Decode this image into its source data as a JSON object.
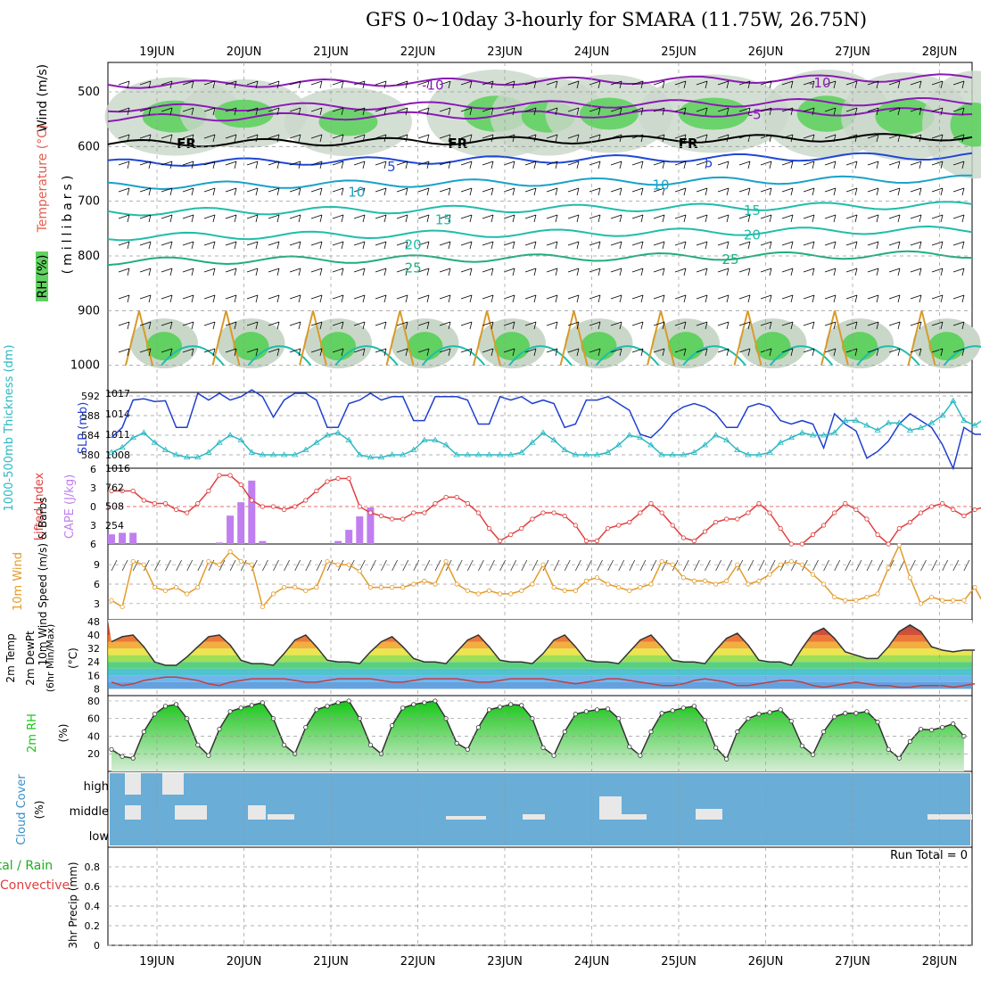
{
  "title": "GFS 0~10day 3-hourly for SMARA (11.75W, 26.75N)",
  "dates": [
    "19JUN",
    "20JUN",
    "21JUN",
    "22JUN",
    "23JUN",
    "24JUN",
    "25JUN",
    "26JUN",
    "27JUN",
    "28JUN"
  ],
  "colors": {
    "rh_fill": "#61d161",
    "temp_purple": "#8a1ab5",
    "temp_blue": "#1f47d6",
    "temp_cyan": "#19a2c8",
    "temp_teal": "#1fbdaa",
    "temp_green": "#1fae7a",
    "temp_orange": "#d99a2a",
    "slp": "#1f3fcf",
    "thickness": "#2bb8c2",
    "lifted": "#e04040",
    "cape": "#c07ef0",
    "wind10": "#e49b2a",
    "cloud_bg": "#6aadd6",
    "cloud_block": "#e8e8e8",
    "rh2m": "#17c717"
  },
  "chart_data": [
    {
      "type": "area",
      "panel": "upper-air",
      "ylabel_parts": [
        "RH (%)",
        "Temperature (°C)",
        "Wind (m/s)"
      ],
      "axis_label": "(millibars)",
      "yticks": [
        500,
        600,
        700,
        800,
        900,
        1000
      ],
      "ylim": [
        1000,
        450
      ],
      "contour_labels": [
        {
          "text": "-10",
          "day": 3.15,
          "p": 486,
          "color": "temp_purple"
        },
        {
          "text": "-10",
          "day": 7.6,
          "p": 482,
          "color": "temp_purple"
        },
        {
          "text": "-5",
          "day": 6.9,
          "p": 540,
          "color": "temp_purple"
        },
        {
          "text": "FR",
          "day": 0.33,
          "p": 593,
          "color": "black"
        },
        {
          "text": "FR",
          "day": 3.45,
          "p": 593,
          "color": "black"
        },
        {
          "text": "FR",
          "day": 6.1,
          "p": 593,
          "color": "black"
        },
        {
          "text": "5",
          "day": 2.75,
          "p": 635,
          "color": "temp_blue"
        },
        {
          "text": "5",
          "day": 6.4,
          "p": 628,
          "color": "temp_blue"
        },
        {
          "text": "10",
          "day": 2.3,
          "p": 682,
          "color": "temp_cyan"
        },
        {
          "text": "10",
          "day": 5.8,
          "p": 669,
          "color": "temp_cyan"
        },
        {
          "text": "15",
          "day": 3.3,
          "p": 732,
          "color": "temp_teal"
        },
        {
          "text": "15",
          "day": 6.85,
          "p": 715,
          "color": "temp_teal"
        },
        {
          "text": "20",
          "day": 2.95,
          "p": 778,
          "color": "temp_teal"
        },
        {
          "text": "20",
          "day": 6.85,
          "p": 760,
          "color": "temp_teal"
        },
        {
          "text": "25",
          "day": 2.95,
          "p": 820,
          "color": "temp_green"
        },
        {
          "text": "25",
          "day": 6.6,
          "p": 805,
          "color": "temp_green"
        }
      ]
    },
    {
      "type": "line",
      "panel": "slp-thickness",
      "ylabel_left": "1000-500mb Thickness (dm)",
      "ylabel_right": "SLP (mb)",
      "yticks_left": [
        580,
        584,
        588,
        592
      ],
      "yticks_right": [
        1008,
        1011,
        1014,
        1017
      ],
      "ylim_left": [
        578.5,
        592.5
      ],
      "series": [
        {
          "name": "SLP (mb)",
          "values": [
            1010.5,
            1012.0,
            1016.0,
            1016.2,
            1015.8,
            1015.9,
            1012.0,
            1012.0,
            1017.0,
            1016.0,
            1017.0,
            1016.0,
            1016.5,
            1017.5,
            1016.5,
            1013.5,
            1016.0,
            1017.0,
            1017.0,
            1016.0,
            1012.0,
            1012.0,
            1015.5,
            1016.0,
            1017.0,
            1016.0,
            1016.5,
            1016.5,
            1013.0,
            1013.0,
            1016.5,
            1016.5,
            1016.5,
            1016.0,
            1012.5,
            1012.5,
            1016.5,
            1016.0,
            1016.5,
            1015.5,
            1016.0,
            1015.5,
            1012.0,
            1012.5,
            1016.0,
            1016.0,
            1016.5,
            1015.5,
            1014.5,
            1011.0,
            1010.5,
            1012.0,
            1014.0,
            1015.0,
            1015.5,
            1015.0,
            1014.0,
            1012.0,
            1012.0,
            1015.0,
            1015.5,
            1015.0,
            1013.0,
            1012.5,
            1013.0,
            1012.5,
            1009.0,
            1014.0,
            1012.5,
            1011.5,
            1007.5,
            1008.5,
            1010.0,
            1012.5,
            1014.0,
            1013.0,
            1012.0,
            1009.5,
            1006.0,
            1012.0,
            1011.0,
            1011.0
          ]
        },
        {
          "name": "1000-500mb Thickness (dm)",
          "values": [
            580.5,
            581.5,
            583.5,
            584.5,
            582.5,
            581.0,
            580.0,
            579.5,
            579.5,
            580.5,
            582.5,
            584.0,
            583.0,
            580.5,
            580.0,
            580.0,
            580.0,
            580.0,
            581.0,
            582.5,
            584.0,
            584.5,
            583.0,
            580.0,
            579.5,
            579.5,
            580.0,
            580.0,
            581.0,
            583.0,
            583.0,
            582.0,
            580.0,
            580.0,
            580.0,
            580.0,
            580.0,
            580.0,
            580.5,
            582.5,
            584.5,
            583.0,
            581.0,
            580.0,
            580.0,
            580.0,
            580.5,
            582.0,
            584.0,
            583.5,
            582.0,
            580.0,
            580.0,
            580.0,
            580.5,
            582.0,
            584.0,
            583.0,
            581.0,
            580.0,
            580.0,
            580.5,
            582.5,
            583.5,
            584.5,
            584.0,
            584.0,
            584.5,
            587.0,
            587.0,
            586.0,
            585.0,
            586.5,
            586.5,
            585.0,
            585.5,
            586.5,
            588.0,
            591.0,
            587.0,
            586.0,
            587.5
          ]
        }
      ]
    },
    {
      "type": "bar",
      "panel": "lifted-cape",
      "ylabel_left": "Lifted Index",
      "ylabel_right": "CAPE (J/kg)",
      "yticks_left": [
        -6,
        -3,
        0,
        3,
        6
      ],
      "yticks_right": [
        254,
        508,
        762,
        1016
      ],
      "series": [
        {
          "name": "CAPE (J/kg)",
          "values": [
            130,
            150,
            150,
            0,
            0,
            0,
            0,
            0,
            0,
            0,
            20,
            380,
            560,
            850,
            40,
            0,
            0,
            0,
            0,
            0,
            0,
            40,
            190,
            370,
            490,
            0,
            0,
            0,
            0,
            0,
            0,
            0,
            0,
            0,
            0,
            0,
            0,
            0,
            0,
            0,
            0,
            0,
            0,
            0,
            0,
            0,
            0,
            0,
            0,
            0,
            0,
            0,
            0,
            0,
            0,
            0,
            0,
            0,
            0,
            0,
            0,
            0,
            0,
            0,
            0,
            0,
            0,
            0,
            0,
            0,
            0,
            0,
            0,
            0,
            0,
            0,
            0,
            0,
            0,
            0,
            0,
            0
          ]
        },
        {
          "name": "Lifted Index",
          "values": [
            -2.5,
            -2.5,
            -2.5,
            -1.0,
            -0.5,
            -0.5,
            0.5,
            1.0,
            -0.5,
            -2.5,
            -5.0,
            -5.0,
            -3.5,
            -1.0,
            0.0,
            0.0,
            0.5,
            0.0,
            -1.0,
            -2.5,
            -4.0,
            -4.5,
            -4.5,
            0.0,
            1.0,
            1.5,
            2.0,
            2.0,
            1.0,
            1.0,
            -0.5,
            -1.5,
            -1.5,
            -0.5,
            1.0,
            3.5,
            5.5,
            4.5,
            3.5,
            2.0,
            1.0,
            1.0,
            1.5,
            3.0,
            5.5,
            5.5,
            3.5,
            3.0,
            2.5,
            1.0,
            -0.5,
            1.0,
            3.0,
            5.0,
            5.5,
            4.0,
            2.5,
            2.0,
            2.0,
            1.0,
            -0.5,
            1.0,
            3.5,
            6.0,
            6.0,
            4.5,
            3.0,
            1.0,
            -0.5,
            0.5,
            2.0,
            4.5,
            6.0,
            3.5,
            2.5,
            1.0,
            0.0,
            -0.5,
            0.5,
            1.5,
            0.5,
            0.0
          ]
        }
      ]
    },
    {
      "type": "line",
      "panel": "wind10m",
      "ylabel": "10m Wind Speed (m/s) & Barbs",
      "yticks": [
        3,
        6,
        9
      ],
      "ylim": [
        0.5,
        11.5
      ],
      "series": [
        {
          "name": "10m Wind Speed",
          "values": [
            3.5,
            2.5,
            9.5,
            9.0,
            5.5,
            5.0,
            5.5,
            4.5,
            5.5,
            9.5,
            9.0,
            11.0,
            9.5,
            9.0,
            2.5,
            4.5,
            5.5,
            5.5,
            5.0,
            5.5,
            9.5,
            9.0,
            9.0,
            8.0,
            5.5,
            5.5,
            5.5,
            5.5,
            6.0,
            6.5,
            6.0,
            9.5,
            6.0,
            5.0,
            4.5,
            5.0,
            4.5,
            4.5,
            5.0,
            6.0,
            9.0,
            5.5,
            5.0,
            5.0,
            6.5,
            7.0,
            6.0,
            5.5,
            5.0,
            5.5,
            6.0,
            9.5,
            9.0,
            7.0,
            6.5,
            6.5,
            6.0,
            6.5,
            9.0,
            6.0,
            6.5,
            7.5,
            9.0,
            9.5,
            9.0,
            7.5,
            6.0,
            4.0,
            3.5,
            3.5,
            4.0,
            4.5,
            8.5,
            12.0,
            7.0,
            3.0,
            4.0,
            3.5,
            3.5,
            3.5,
            5.5,
            2.5,
            1.0
          ]
        }
      ]
    },
    {
      "type": "area",
      "panel": "temp2m",
      "ylabel": "2m Temp 2m DewPt (6hr Min/Max) (°C)",
      "yticks": [
        8,
        16,
        24,
        32,
        40,
        48
      ],
      "ylim": [
        4,
        49
      ],
      "series": [
        {
          "name": "2m Temp",
          "values": [
            36,
            39,
            40,
            33,
            24,
            22,
            22,
            27,
            33,
            39,
            40,
            34,
            25,
            23,
            23,
            22,
            29,
            37,
            40,
            33,
            25,
            24,
            24,
            23,
            30,
            36,
            39,
            33,
            26,
            24,
            24,
            23,
            30,
            37,
            40,
            33,
            25,
            24,
            24,
            23,
            29,
            37,
            40,
            33,
            25,
            24,
            24,
            23,
            30,
            37,
            40,
            33,
            25,
            24,
            24,
            23,
            31,
            38,
            41,
            34,
            25,
            24,
            24,
            22,
            32,
            41,
            44,
            38,
            30,
            28,
            26,
            26,
            33,
            42,
            46,
            42,
            33,
            31,
            30,
            31,
            31
          ]
        },
        {
          "name": "2m DewPt",
          "values": [
            12,
            10,
            11,
            13,
            14,
            15,
            15,
            14,
            13,
            11,
            10,
            12,
            13,
            14,
            14,
            14,
            14,
            13,
            12,
            12,
            13,
            14,
            14,
            14,
            14,
            13,
            12,
            12,
            13,
            14,
            14,
            14,
            14,
            13,
            12,
            12,
            13,
            14,
            14,
            14,
            14,
            13,
            12,
            11,
            12,
            13,
            14,
            14,
            13,
            12,
            11,
            10,
            10,
            11,
            13,
            14,
            13,
            12,
            10,
            10,
            11,
            12,
            13,
            13,
            12,
            10,
            9,
            10,
            11,
            12,
            11,
            10,
            10,
            9,
            9,
            10,
            10,
            10,
            9,
            10,
            11
          ]
        }
      ]
    },
    {
      "type": "area",
      "panel": "rh2m",
      "ylabel": "2m RH (%)",
      "yticks": [
        20,
        40,
        60,
        80
      ],
      "ylim": [
        0,
        86
      ],
      "series": [
        {
          "name": "2m RH",
          "values": [
            25,
            17,
            15,
            45,
            65,
            74,
            76,
            60,
            30,
            18,
            48,
            68,
            72,
            75,
            78,
            60,
            30,
            20,
            50,
            70,
            74,
            78,
            80,
            60,
            30,
            20,
            52,
            72,
            76,
            78,
            80,
            60,
            32,
            25,
            50,
            70,
            73,
            76,
            75,
            60,
            27,
            18,
            45,
            65,
            68,
            70,
            71,
            60,
            28,
            18,
            45,
            66,
            69,
            72,
            74,
            58,
            27,
            14,
            45,
            60,
            65,
            67,
            70,
            57,
            29,
            19,
            45,
            62,
            66,
            66,
            68,
            56,
            25,
            15,
            34,
            48,
            47,
            50,
            54,
            40,
            20,
            12,
            10,
            8,
            25,
            30,
            30,
            30,
            30
          ]
        }
      ]
    },
    {
      "type": "bar",
      "panel": "cloud",
      "ylabel": "Cloud Cover (%)",
      "levels": [
        "high",
        "middle",
        "low"
      ]
    },
    {
      "type": "bar",
      "panel": "precip",
      "ylabel_parts": [
        "Total / Rain",
        "Convective",
        "3hr Precip (mm)"
      ],
      "yticks": [
        0,
        0.2,
        0.4,
        0.6,
        0.8
      ],
      "ylim": [
        0,
        1
      ],
      "annotation": "Run Total = 0",
      "values": []
    }
  ]
}
